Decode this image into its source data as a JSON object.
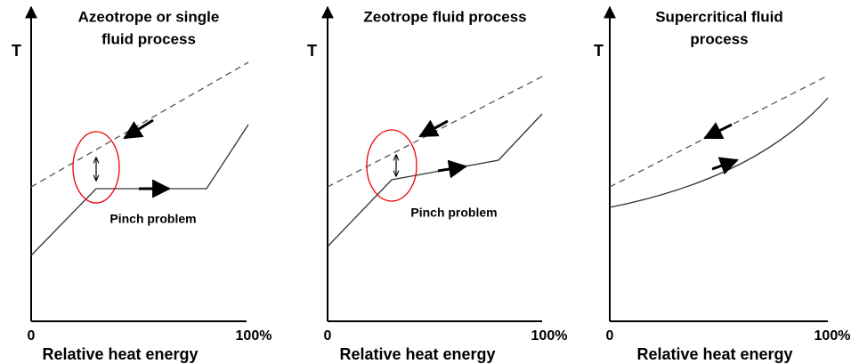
{
  "panels": [
    {
      "title_lines": [
        "Azeotrope or single",
        "fluid process"
      ],
      "y_label": "T",
      "x_start": "0",
      "x_end": "100%",
      "x_label": "Relative heat energy",
      "annotation": "Pinch problem"
    },
    {
      "title_lines": [
        "Zeotrope fluid process"
      ],
      "y_label": "T",
      "x_start": "0",
      "x_end": "100%",
      "x_label": "Relative heat energy",
      "annotation": "Pinch problem"
    },
    {
      "title_lines": [
        "Supercritical fluid",
        "process"
      ],
      "y_label": "T",
      "x_start": "0",
      "x_end": "100%",
      "x_label": "Relative heat energy"
    }
  ]
}
